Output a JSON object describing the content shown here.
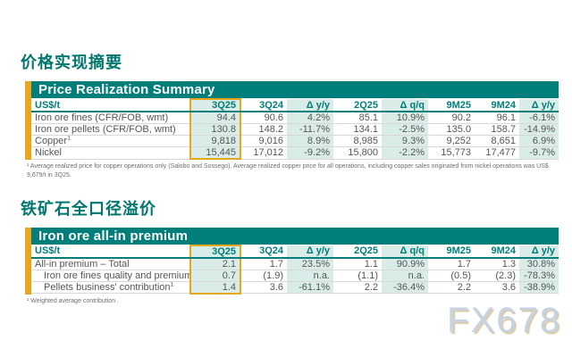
{
  "page": {
    "watermark": "FX678"
  },
  "colors": {
    "brand_teal": "#007e7a",
    "accent_gold": "#e5a71e",
    "shaded_column_mint": "#d9ece7",
    "body_text": "#54565a",
    "footnote_text": "#6d6e71",
    "watermark_text": "#c7d3e1"
  },
  "sections": [
    {
      "heading": "价格实现摘要",
      "table": {
        "title": "Price Realization Summary",
        "unit_header": "US$/t",
        "columns": [
          "US$/t",
          "3Q25",
          "3Q24",
          "Δ y/y",
          "2Q25",
          "Δ q/q",
          "9M25",
          "9M24",
          "Δ y/y"
        ],
        "highlight_column": "3Q25",
        "rows": [
          {
            "label": "Iron ore fines (CFR/FOB, wmt)",
            "sup": "",
            "indent": false,
            "values": [
              "94.4",
              "90.6",
              "4.2%",
              "85.1",
              "10.9%",
              "90.2",
              "96.1",
              "-6.1%"
            ]
          },
          {
            "label": "Iron ore pellets (CFR/FOB, wmt)",
            "sup": "",
            "indent": false,
            "values": [
              "130.8",
              "148.2",
              "-11.7%",
              "134.1",
              "-2.5%",
              "135.0",
              "158.7",
              "-14.9%"
            ]
          },
          {
            "label": "Copper",
            "sup": "1",
            "indent": false,
            "values": [
              "9,818",
              "9,016",
              "8.9%",
              "8,985",
              "9.3%",
              "9,252",
              "8,651",
              "6.9%"
            ]
          },
          {
            "label": "Nickel",
            "sup": "",
            "indent": false,
            "values": [
              "15,445",
              "17,012",
              "-9.2%",
              "15,800",
              "-2.2%",
              "15,773",
              "17,477",
              "-9.7%"
            ]
          }
        ],
        "footnote": "¹ Average realized price for copper operations only (Salobo and Sossego). Average realized copper price for all operations, including copper sales originated from nickel operations was US$ 9,679/t in 3Q25."
      }
    },
    {
      "heading": "铁矿石全口径溢价",
      "table": {
        "title": "Iron ore all-in premium",
        "unit_header": "US$/t",
        "columns": [
          "US$/t",
          "3Q25",
          "3Q24",
          "Δ y/y",
          "2Q25",
          "Δ q/q",
          "9M25",
          "9M24",
          "Δ y/y"
        ],
        "highlight_column": "3Q25",
        "rows": [
          {
            "label": "All-in premium – Total",
            "sup": "",
            "indent": false,
            "values": [
              "2.1",
              "1.7",
              "23.5%",
              "1.1",
              "90.9%",
              "1.7",
              "1.3",
              "30.8%"
            ]
          },
          {
            "label": "Iron ore fines quality and premiums",
            "sup": "",
            "indent": true,
            "values": [
              "0.7",
              "(1.9)",
              "n.a.",
              "(1.1)",
              "n.a.",
              "(0.5)",
              "(2.3)",
              "-78.3%"
            ]
          },
          {
            "label": "Pellets business' contribution",
            "sup": "1",
            "indent": true,
            "values": [
              "1.4",
              "3.6",
              "-61.1%",
              "2.2",
              "-36.4%",
              "2.2",
              "3.6",
              "-38.9%"
            ]
          }
        ],
        "footnote": "¹ Weighted average contribution ."
      }
    }
  ]
}
